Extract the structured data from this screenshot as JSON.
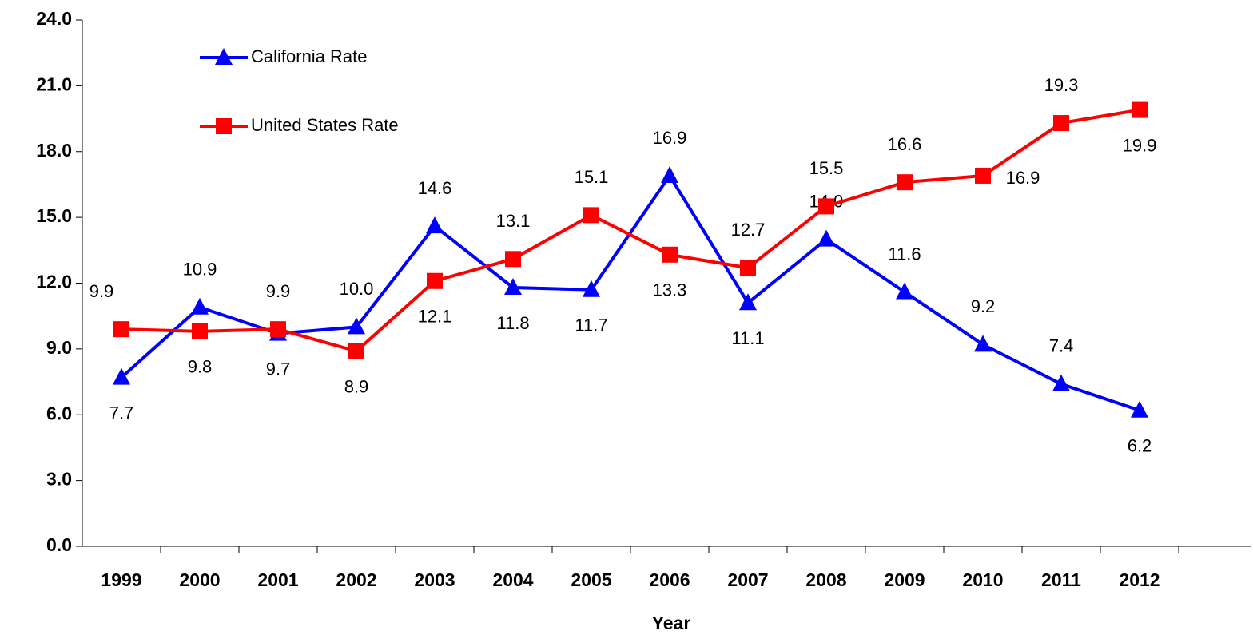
{
  "chart_data": {
    "type": "line",
    "x_label": "Year",
    "categories": [
      "1999",
      "2000",
      "2001",
      "2002",
      "2003",
      "2004",
      "2005",
      "2006",
      "2007",
      "2008",
      "2009",
      "2010",
      "2011",
      "2012"
    ],
    "series": [
      {
        "name": "California Rate",
        "color": "#0000ff",
        "marker": "triangle",
        "values": [
          7.7,
          10.9,
          9.7,
          10.0,
          14.6,
          11.8,
          11.7,
          16.9,
          11.1,
          14.0,
          11.6,
          9.2,
          7.4,
          6.2
        ],
        "value_labels": [
          "7.7",
          "10.9",
          "9.7",
          "10.0",
          "14.6",
          "11.8",
          "11.7",
          "16.9",
          "11.1",
          "14.0",
          "11.6",
          "9.2",
          "7.4",
          "6.2"
        ]
      },
      {
        "name": "United States Rate",
        "color": "#ff0000",
        "marker": "square",
        "values": [
          9.9,
          9.8,
          9.9,
          8.9,
          12.1,
          13.1,
          15.1,
          13.3,
          12.7,
          15.5,
          16.6,
          16.9,
          19.3,
          19.9
        ],
        "value_labels": [
          "9.9",
          "9.8",
          "9.9",
          "8.9",
          "12.1",
          "13.1",
          "15.1",
          "13.3",
          "12.7",
          "15.5",
          "16.6",
          "16.9",
          "19.3",
          "19.9"
        ]
      }
    ],
    "ylim": [
      0,
      24
    ],
    "yticks": [
      {
        "value": 0,
        "label": "0.0"
      },
      {
        "value": 3,
        "label": "3.0"
      },
      {
        "value": 6,
        "label": "6.0"
      },
      {
        "value": 9,
        "label": "9.0"
      },
      {
        "value": 12,
        "label": "12.0"
      },
      {
        "value": 15,
        "label": "15.0"
      },
      {
        "value": 18,
        "label": "18.0"
      },
      {
        "value": 21,
        "label": "21.0"
      },
      {
        "value": 24,
        "label": "24.0"
      }
    ],
    "grid": false
  }
}
